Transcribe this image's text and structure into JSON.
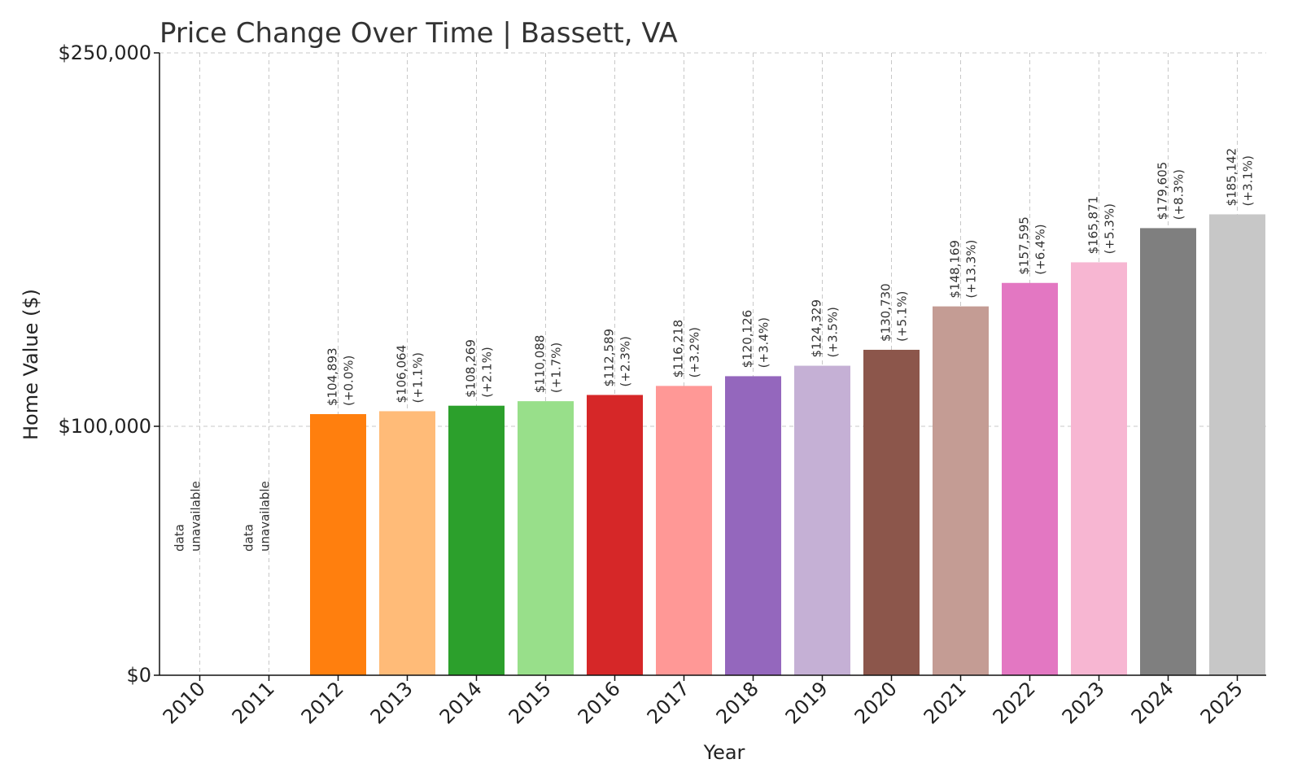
{
  "chart_data": {
    "type": "bar",
    "title": "Price Change Over Time | Bassett, VA",
    "xlabel": "Year",
    "ylabel": "Home Value ($)",
    "ylim": [
      0,
      250000
    ],
    "yticks": [
      {
        "value": 0,
        "label": "$0"
      },
      {
        "value": 100000,
        "label": "$100,000"
      },
      {
        "value": 250000,
        "label": "$250,000"
      }
    ],
    "grid": true,
    "categories": [
      "2010",
      "2011",
      "2012",
      "2013",
      "2014",
      "2015",
      "2016",
      "2017",
      "2018",
      "2019",
      "2020",
      "2021",
      "2022",
      "2023",
      "2024",
      "2025"
    ],
    "values": [
      null,
      null,
      104893,
      106064,
      108269,
      110088,
      112589,
      116218,
      120126,
      124329,
      130730,
      148169,
      157595,
      165871,
      179605,
      185142
    ],
    "value_labels": [
      "",
      "",
      "$104,893",
      "$106,064",
      "$108,269",
      "$110,088",
      "$112,589",
      "$116,218",
      "$120,126",
      "$124,329",
      "$130,730",
      "$148,169",
      "$157,595",
      "$165,871",
      "$179,605",
      "$185,142"
    ],
    "change_labels": [
      "",
      "",
      "(+0.0%)",
      "(+1.1%)",
      "(+2.1%)",
      "(+1.7%)",
      "(+2.3%)",
      "(+3.2%)",
      "(+3.4%)",
      "(+3.5%)",
      "(+5.1%)",
      "(+13.3%)",
      "(+6.4%)",
      "(+5.3%)",
      "(+8.3%)",
      "(+3.1%)"
    ],
    "unavailable_label": [
      "data",
      "unavailable"
    ],
    "colors": [
      "#1f77b4",
      "#aec7e8",
      "#ff7f0e",
      "#ffbb78",
      "#2ca02c",
      "#98df8a",
      "#d62728",
      "#ff9896",
      "#9467bd",
      "#c5b0d5",
      "#8c564b",
      "#c49c94",
      "#e377c2",
      "#f7b6d2",
      "#7f7f7f",
      "#c7c7c7"
    ]
  }
}
